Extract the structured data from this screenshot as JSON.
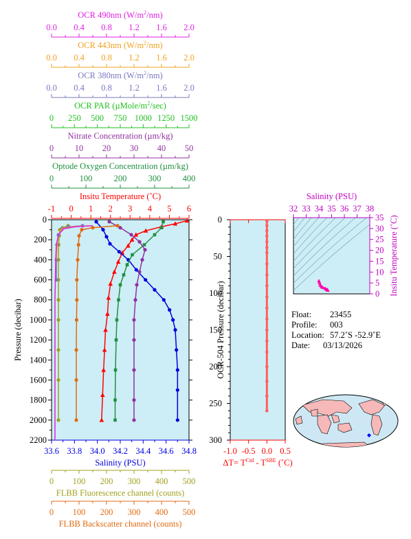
{
  "chart_data": [
    {
      "type": "line",
      "panel": "main-profile",
      "ylabel": "Pressure (decibar)",
      "ylim": [
        0,
        2200
      ],
      "y_ticks": [
        0,
        200,
        400,
        600,
        800,
        1000,
        1200,
        1400,
        1600,
        1800,
        2000,
        2200
      ],
      "top_axes": [
        {
          "id": "ocr490",
          "label": "OCR 490nm (W/m²/nm)",
          "color": "#e020e0",
          "range": [
            0,
            2
          ],
          "ticks": [
            "0.0",
            "0.4",
            "0.8",
            "1.2",
            "1.6",
            "2.0"
          ]
        },
        {
          "id": "ocr443",
          "label": "OCR 443nm (W/m²/nm)",
          "color": "#f0a020",
          "range": [
            0,
            2
          ],
          "ticks": [
            "0.0",
            "0.4",
            "0.8",
            "1.2",
            "1.6",
            "2.0"
          ]
        },
        {
          "id": "ocr380",
          "label": "OCR 380nm (W/m²/nm)",
          "color": "#7878c0",
          "range": [
            0,
            2
          ],
          "ticks": [
            "0.0",
            "0.4",
            "0.8",
            "1.2",
            "1.6",
            "2.0"
          ]
        },
        {
          "id": "par",
          "label": "OCR PAR (µMole/m²/sec)",
          "color": "#20c020",
          "range": [
            0,
            1500
          ],
          "ticks": [
            "0",
            "250",
            "500",
            "750",
            "1000",
            "1250",
            "1500"
          ]
        },
        {
          "id": "nitrate",
          "label": "Nitrate Concentration (µm/kg)",
          "color": "#9030a0",
          "range": [
            0,
            50
          ],
          "ticks": [
            "0",
            "10",
            "20",
            "30",
            "40",
            "50"
          ]
        },
        {
          "id": "oxygen",
          "label": "Optode Oxygen Concentration (µm/kg)",
          "color": "#209040",
          "range": [
            0,
            400
          ],
          "ticks": [
            "0",
            "100",
            "200",
            "300",
            "400"
          ]
        },
        {
          "id": "temp",
          "label": "Insitu Temperature (˚C)",
          "color": "#ff0000",
          "range": [
            -1,
            6
          ],
          "ticks": [
            "-1",
            "0",
            "1",
            "2",
            "3",
            "4",
            "5",
            "6"
          ]
        }
      ],
      "bottom_axes": [
        {
          "id": "sal",
          "label": "Salinity (PSU)",
          "color": "#0000e0",
          "range": [
            33.6,
            34.8
          ],
          "ticks": [
            "33.6",
            "33.8",
            "34.0",
            "34.2",
            "34.4",
            "34.6",
            "34.8"
          ]
        },
        {
          "id": "fluor",
          "label": "FLBB Fluorescence channel (counts)",
          "color": "#a0a020",
          "range": [
            0,
            500
          ],
          "ticks": [
            "0",
            "100",
            "200",
            "300",
            "400",
            "500"
          ]
        },
        {
          "id": "bb",
          "label": "FLBB Backscatter channel (counts)",
          "color": "#e06a10",
          "range": [
            0,
            500
          ],
          "ticks": [
            "0",
            "100",
            "200",
            "300",
            "400",
            "500"
          ]
        }
      ],
      "series": [
        {
          "axis": "temp",
          "marker": "triangle",
          "color": "#ff0000",
          "x": [
            5.9,
            5.3,
            4.6,
            3.8,
            3.3,
            3.1,
            2.9,
            2.6,
            2.4,
            2.2,
            2.0,
            1.9,
            1.85,
            1.75,
            1.7,
            1.65,
            1.6,
            1.55
          ],
          "y": [
            10,
            40,
            70,
            110,
            150,
            200,
            260,
            330,
            420,
            520,
            640,
            780,
            940,
            1100,
            1300,
            1500,
            1750,
            2000
          ]
        },
        {
          "axis": "sal",
          "marker": "circle",
          "color": "#0000e0",
          "x": [
            33.99,
            34.05,
            34.08,
            34.11,
            34.19,
            34.27,
            34.34,
            34.42,
            34.5,
            34.58,
            34.63,
            34.66,
            34.68,
            34.69,
            34.7,
            34.7,
            34.7
          ],
          "y": [
            20,
            100,
            170,
            240,
            320,
            400,
            500,
            600,
            700,
            800,
            900,
            1000,
            1100,
            1300,
            1500,
            1700,
            2000
          ]
        },
        {
          "axis": "oxygen",
          "marker": "square",
          "color": "#209040",
          "x": [
            325,
            320,
            300,
            270,
            235,
            220,
            210,
            200,
            195,
            190,
            188,
            186,
            185,
            185
          ],
          "y": [
            20,
            80,
            150,
            250,
            350,
            450,
            550,
            650,
            800,
            1000,
            1200,
            1500,
            1800,
            2000
          ]
        },
        {
          "axis": "nitrate",
          "marker": "circle",
          "color": "#9030a0",
          "x": [
            21,
            25,
            29,
            32,
            34,
            33,
            32,
            31,
            30.5,
            30,
            30,
            30,
            30,
            30
          ],
          "y": [
            20,
            80,
            150,
            220,
            300,
            400,
            520,
            650,
            800,
            1000,
            1200,
            1500,
            1800,
            2000
          ]
        },
        {
          "axis": "bb",
          "marker": "circle",
          "color": "#e06a10",
          "x": [
            240,
            150,
            110,
            100,
            98,
            95,
            92,
            92,
            91,
            90,
            90,
            90
          ],
          "y": [
            60,
            80,
            100,
            160,
            250,
            400,
            600,
            800,
            1000,
            1300,
            1600,
            2000
          ]
        },
        {
          "axis": "fluor",
          "marker": "circle",
          "color": "#a0a020",
          "x": [
            60,
            40,
            30,
            28,
            26,
            25,
            25,
            25,
            25,
            25,
            25,
            25
          ],
          "y": [
            60,
            80,
            100,
            160,
            250,
            400,
            600,
            800,
            1000,
            1300,
            1600,
            2000
          ]
        },
        {
          "axis": "ocr380",
          "marker": "circle",
          "color": "#7878c0",
          "x": [
            0.45,
            0.25,
            0.15,
            0.1,
            0.08,
            0.07,
            0.07
          ],
          "y": [
            60,
            70,
            90,
            150,
            250,
            400,
            600
          ]
        },
        {
          "axis": "ocr443",
          "marker": "none",
          "color": "#f0a020",
          "x": [
            0.55,
            0.3,
            0.15,
            0.1,
            0.08,
            0.07
          ],
          "y": [
            60,
            70,
            90,
            150,
            250,
            400
          ]
        },
        {
          "axis": "ocr490",
          "marker": "none",
          "color": "#e020e0",
          "x": [
            0.6,
            0.35,
            0.18,
            0.1,
            0.07,
            0.06,
            0.05,
            0.05
          ],
          "y": [
            60,
            70,
            90,
            150,
            250,
            400,
            800,
            2200
          ]
        }
      ]
    },
    {
      "type": "scatter",
      "panel": "delta-t",
      "xlabel": "ΔT= T",
      "xlabel_sup1": "Ctd",
      "xlabel_mid": " - T",
      "xlabel_sup2": "SBE",
      "xlabel_unit": " (˚C)",
      "ylabel": "OCR-504 Pressure (decibar)",
      "xlim": [
        -1.0,
        0.5
      ],
      "ylim": [
        0,
        300
      ],
      "x_ticks": [
        "-1.0",
        "-0.5",
        "0.0",
        "0.5"
      ],
      "y_ticks": [
        "0",
        "50",
        "100",
        "150",
        "200",
        "250",
        "300"
      ],
      "color": "#ff6060",
      "x": [
        0.0,
        0.0,
        0.0,
        0.0,
        0.0,
        0.0,
        0.0,
        0.0,
        0.0,
        0.0,
        0.0,
        0.0,
        0.0,
        0.0,
        0.0,
        0.0,
        0.0,
        0.0,
        0.0,
        0.0
      ],
      "y": [
        2,
        8,
        15,
        22,
        30,
        38,
        45,
        60,
        75,
        90,
        105,
        120,
        135,
        150,
        165,
        180,
        200,
        220,
        240,
        260
      ]
    },
    {
      "type": "scatter",
      "panel": "t-s",
      "xlabel": "Salinity (PSU)",
      "ylabel": "Insitu Temperature (˚C)",
      "xlim": [
        32,
        38
      ],
      "ylim": [
        0,
        35
      ],
      "x_ticks": [
        "32",
        "33",
        "34",
        "35",
        "36",
        "37",
        "38"
      ],
      "y_ticks": [
        "0",
        "5",
        "10",
        "15",
        "20",
        "25",
        "30",
        "35"
      ],
      "color": "#ff00aa",
      "x": [
        34.0,
        34.05,
        34.1,
        34.2,
        34.3,
        34.5,
        34.6,
        34.68,
        34.7
      ],
      "y": [
        5.9,
        5.0,
        4.0,
        3.3,
        2.9,
        2.4,
        2.0,
        1.8,
        1.6
      ]
    }
  ],
  "info": {
    "float_label": "Float:",
    "float_value": "23455",
    "profile_label": "Profile:",
    "profile_value": "003",
    "location_label": "Location:",
    "location_value": "57.2˚S  -52.9˚E",
    "date_label": "Date:",
    "date_value": "03/13/2026"
  },
  "colors": {
    "plot_bg": "#cdeef6",
    "map_ocean": "#cde8f4",
    "map_land": "#f6b8b8",
    "float_marker": "#0000ff"
  }
}
